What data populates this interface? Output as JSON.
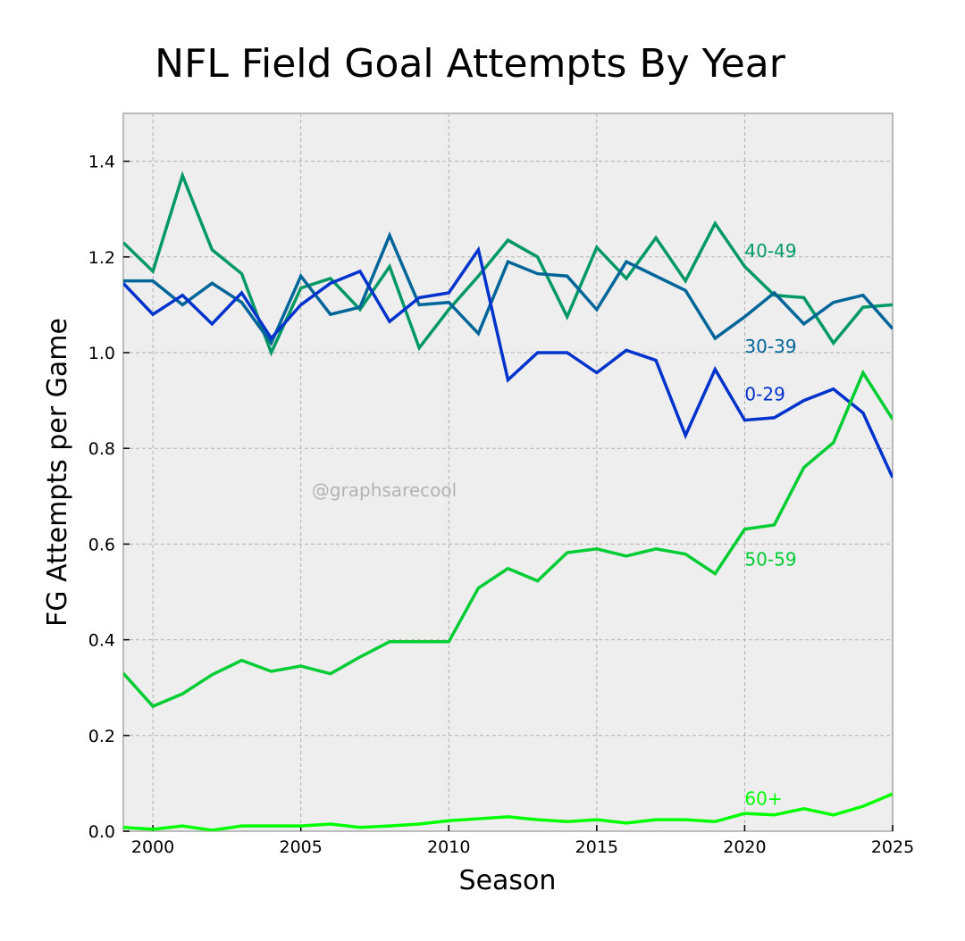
{
  "chart_data": {
    "type": "line",
    "title": "NFL Field Goal Attempts By Year",
    "xlabel": "Season",
    "ylabel": "FG Attempts per Game",
    "xlim": [
      1999,
      2025
    ],
    "ylim": [
      0,
      1.5
    ],
    "xticks": [
      2000,
      2005,
      2010,
      2015,
      2020,
      2025
    ],
    "xtick_labels": [
      "2000",
      "2005",
      "2010",
      "2015",
      "2020",
      "2025"
    ],
    "yticks": [
      0.0,
      0.2,
      0.4,
      0.6,
      0.8,
      1.0,
      1.2,
      1.4
    ],
    "ytick_labels": [
      "0.0",
      "0.2",
      "0.4",
      "0.6",
      "0.8",
      "1.0",
      "1.2",
      "1.4"
    ],
    "grid": true,
    "legend": "inline labels near 2020",
    "watermark": "@graphsarecool",
    "x": [
      1999,
      2000,
      2001,
      2002,
      2003,
      2004,
      2005,
      2006,
      2007,
      2008,
      2009,
      2010,
      2011,
      2012,
      2013,
      2014,
      2015,
      2016,
      2017,
      2018,
      2019,
      2020,
      2021,
      2022,
      2023,
      2024,
      2025
    ],
    "series": [
      {
        "name": "40-49",
        "color": "#009966",
        "label_x": 2020,
        "label_y": 1.2,
        "values": [
          1.23,
          1.17,
          1.37,
          1.215,
          1.165,
          1.0,
          1.135,
          1.155,
          1.09,
          1.18,
          1.01,
          1.09,
          1.16,
          1.235,
          1.2,
          1.075,
          1.22,
          1.155,
          1.24,
          1.15,
          1.27,
          1.18,
          1.12,
          1.115,
          1.02,
          1.095,
          1.1
        ]
      },
      {
        "name": "30-39",
        "color": "#006699",
        "label_x": 2020,
        "label_y": 1.0,
        "values": [
          1.15,
          1.15,
          1.1,
          1.145,
          1.105,
          1.02,
          1.16,
          1.08,
          1.095,
          1.245,
          1.1,
          1.105,
          1.04,
          1.19,
          1.165,
          1.16,
          1.09,
          1.19,
          1.16,
          1.13,
          1.03,
          1.075,
          1.125,
          1.06,
          1.105,
          1.12,
          1.05
        ]
      },
      {
        "name": "0-29",
        "color": "#0033cc",
        "label_x": 2020,
        "label_y": 0.9,
        "values": [
          1.145,
          1.08,
          1.12,
          1.06,
          1.125,
          1.03,
          1.1,
          1.145,
          1.17,
          1.065,
          1.115,
          1.125,
          1.215,
          0.943,
          1.0,
          1.0,
          0.958,
          1.005,
          0.984,
          0.827,
          0.965,
          0.859,
          0.864,
          0.9,
          0.924,
          0.874,
          0.739
        ]
      },
      {
        "name": "50-59",
        "color": "#00cc33",
        "label_x": 2020,
        "label_y": 0.555,
        "values": [
          0.33,
          0.261,
          0.287,
          0.327,
          0.357,
          0.334,
          0.345,
          0.329,
          0.364,
          0.396,
          0.396,
          0.396,
          0.508,
          0.549,
          0.523,
          0.582,
          0.59,
          0.575,
          0.59,
          0.579,
          0.538,
          0.631,
          0.64,
          0.76,
          0.812,
          0.958,
          0.861
        ]
      },
      {
        "name": "60+",
        "color": "#00ff00",
        "label_x": 2020,
        "label_y": 0.055,
        "values": [
          0.008,
          0.004,
          0.011,
          0.002,
          0.011,
          0.011,
          0.011,
          0.015,
          0.008,
          0.011,
          0.015,
          0.022,
          0.026,
          0.03,
          0.024,
          0.02,
          0.024,
          0.017,
          0.024,
          0.024,
          0.02,
          0.037,
          0.034,
          0.047,
          0.034,
          0.052,
          0.078
        ]
      }
    ]
  }
}
